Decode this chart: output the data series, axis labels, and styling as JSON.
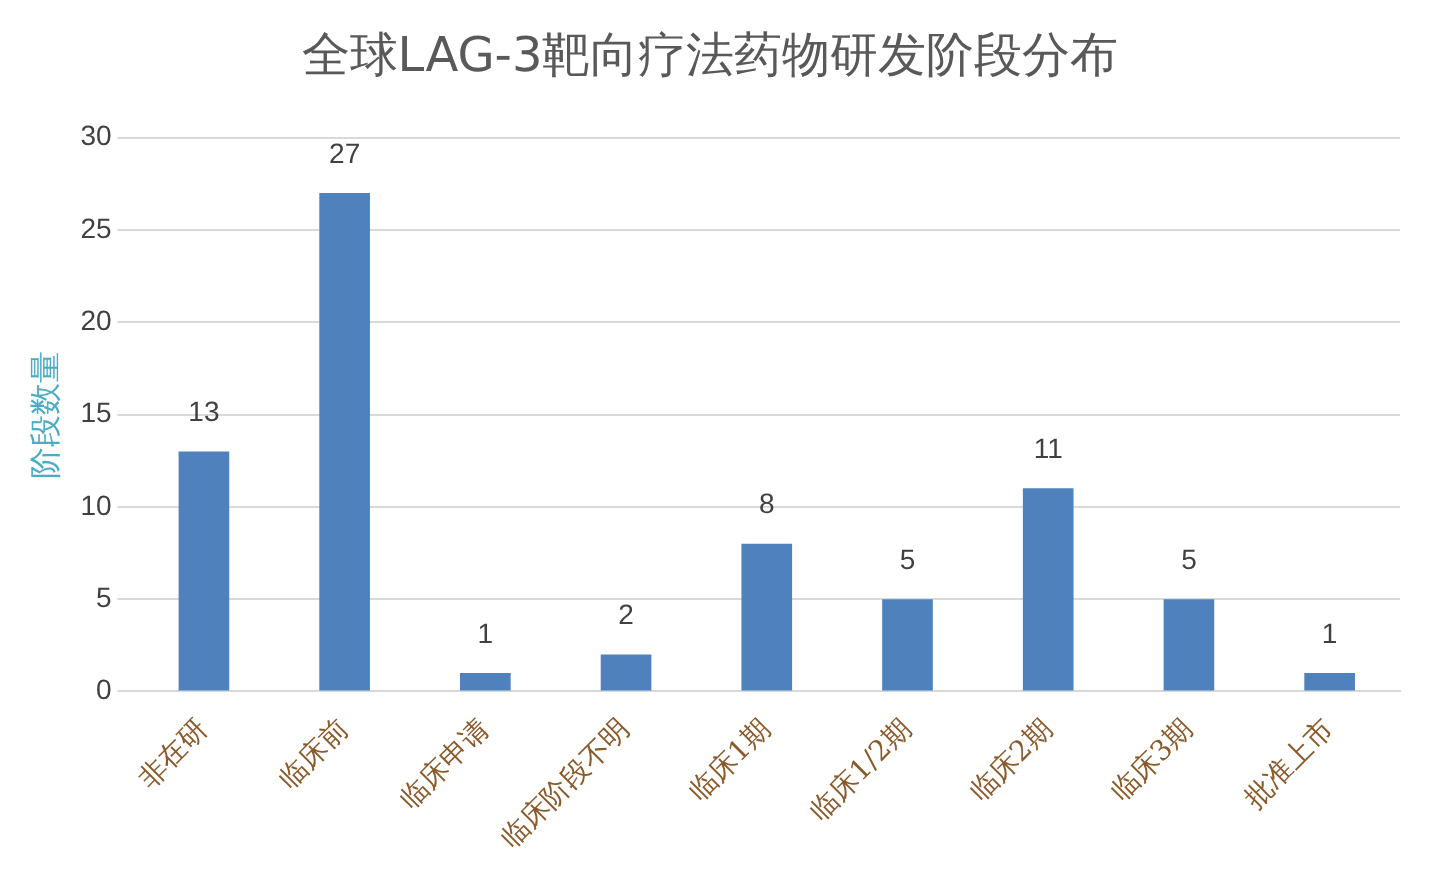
{
  "chart_data": {
    "type": "bar",
    "title": "全球LAG-3靶向疗法药物研发阶段分布",
    "ylabel": "阶段数量",
    "categories": [
      "非在研",
      "临床前",
      "临床申请",
      "临床阶段不明",
      "临床1期",
      "临床1/2期",
      "临床2期",
      "临床3期",
      "批准上市"
    ],
    "values": [
      13,
      27,
      1,
      2,
      8,
      5,
      11,
      5,
      1
    ],
    "color": "#4f81bd",
    "ylim": [
      0,
      30
    ],
    "yticks": [
      0,
      5,
      10,
      15,
      20,
      25,
      30
    ],
    "grid": "y",
    "data_labels": true,
    "legend": false
  }
}
